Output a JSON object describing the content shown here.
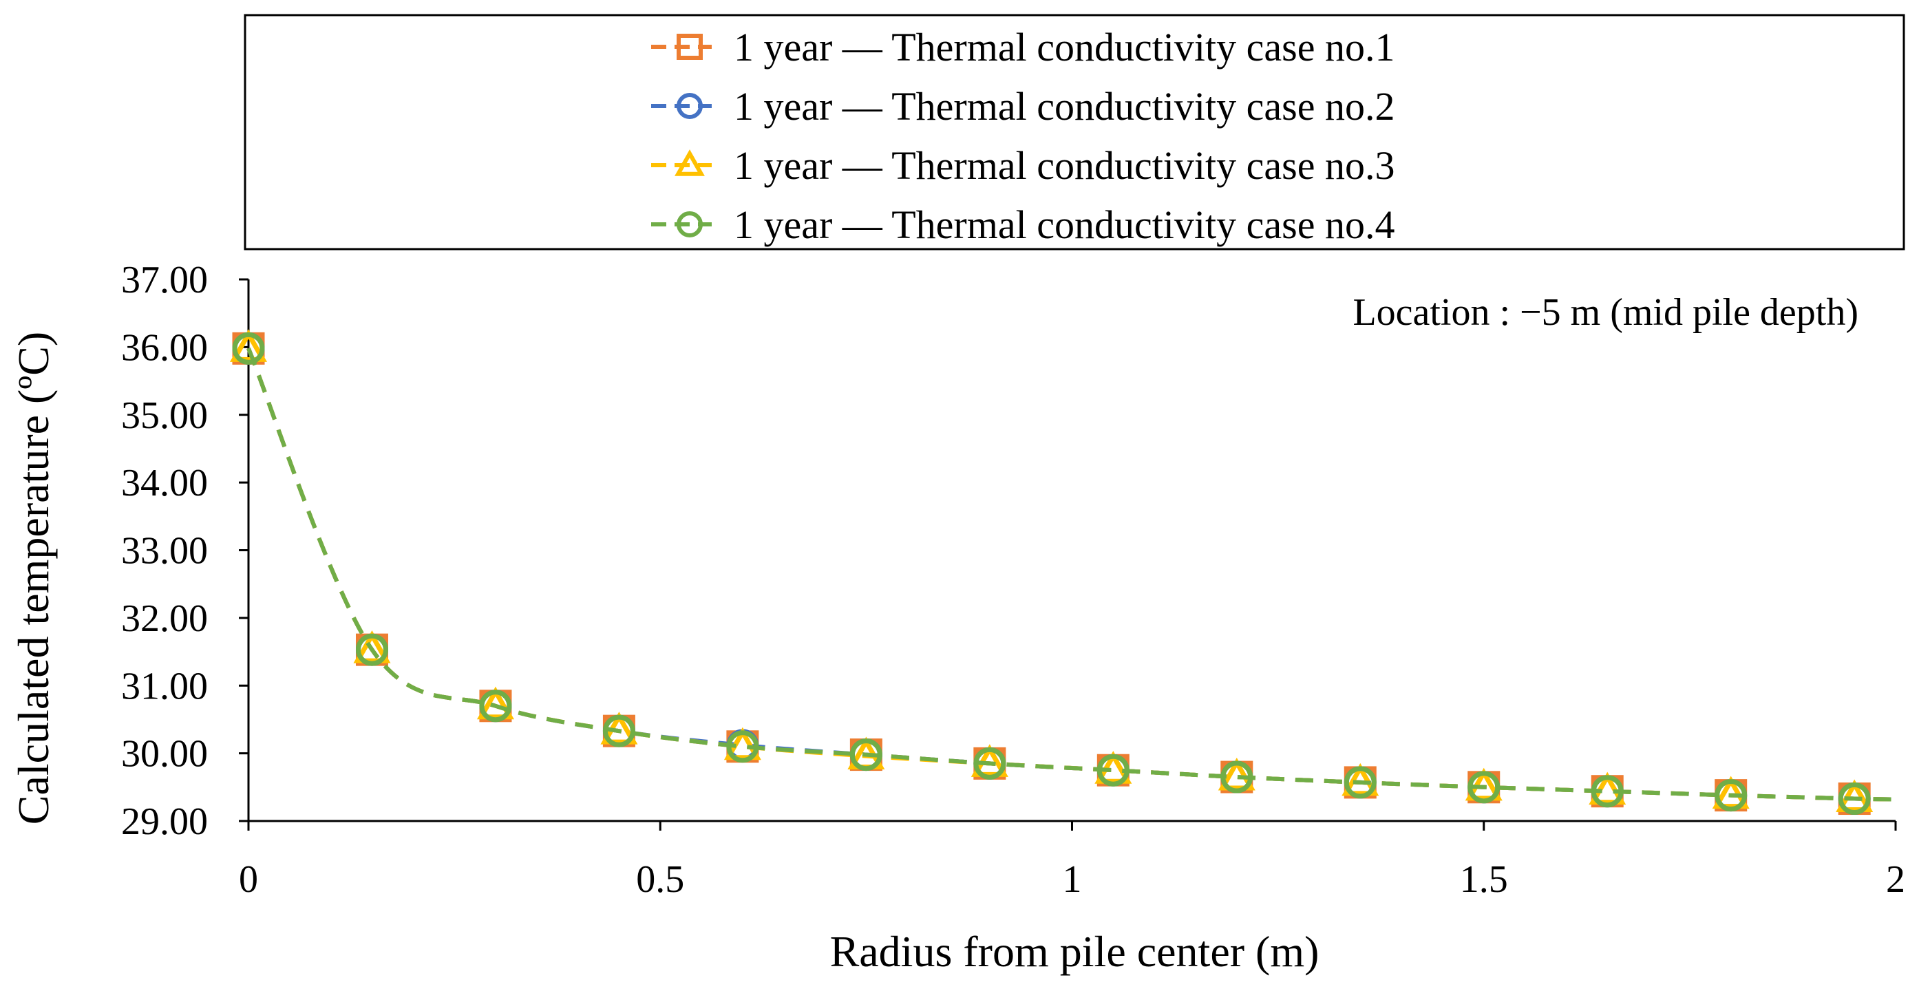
{
  "chart_data": {
    "type": "line",
    "title": "",
    "annotation": "Location : −5 m (mid pile depth)",
    "xlabel": "Radius from pile center (m)",
    "ylabel": "Calculated temperature (ºC)",
    "xlim": [
      0,
      2
    ],
    "ylim": [
      29,
      37
    ],
    "xticks": [
      0,
      0.5,
      1,
      1.5,
      2
    ],
    "xtick_labels": [
      "0",
      "0.5",
      "1",
      "1.5",
      "2"
    ],
    "yticks": [
      29,
      30,
      31,
      32,
      33,
      34,
      35,
      36,
      37
    ],
    "ytick_labels": [
      "29.00",
      "30.00",
      "31.00",
      "32.00",
      "33.00",
      "34.00",
      "35.00",
      "36.00",
      "37.00"
    ],
    "grid": false,
    "legend_position": "top",
    "x": [
      0.0,
      0.15,
      0.3,
      0.45,
      0.6,
      0.75,
      0.9,
      1.05,
      1.2,
      1.35,
      1.5,
      1.65,
      1.8,
      1.95
    ],
    "curve_end": {
      "x": 2.0,
      "y": 29.32
    },
    "series": [
      {
        "name": "1 year — Thermal conductivity case no.1",
        "color": "#ED7D31",
        "marker": "square",
        "values": [
          35.98,
          31.53,
          30.7,
          30.33,
          30.1,
          29.98,
          29.85,
          29.75,
          29.65,
          29.57,
          29.5,
          29.44,
          29.38,
          29.33
        ]
      },
      {
        "name": "1 year — Thermal conductivity case no.2",
        "color": "#4472C4",
        "marker": "circle",
        "values": [
          35.98,
          31.53,
          30.7,
          30.33,
          30.12,
          29.98,
          29.85,
          29.75,
          29.65,
          29.57,
          29.5,
          29.44,
          29.38,
          29.33
        ]
      },
      {
        "name": "1 year — Thermal conductivity case no.3",
        "color": "#FFC000",
        "marker": "triangle",
        "values": [
          35.98,
          31.53,
          30.7,
          30.33,
          30.1,
          29.96,
          29.85,
          29.75,
          29.65,
          29.57,
          29.5,
          29.44,
          29.38,
          29.33
        ]
      },
      {
        "name": "1 year — Thermal conductivity case no.4",
        "color": "#70AD47",
        "marker": "circle",
        "values": [
          35.98,
          31.53,
          30.7,
          30.33,
          30.1,
          29.98,
          29.85,
          29.75,
          29.65,
          29.57,
          29.5,
          29.44,
          29.38,
          29.33
        ]
      }
    ]
  }
}
